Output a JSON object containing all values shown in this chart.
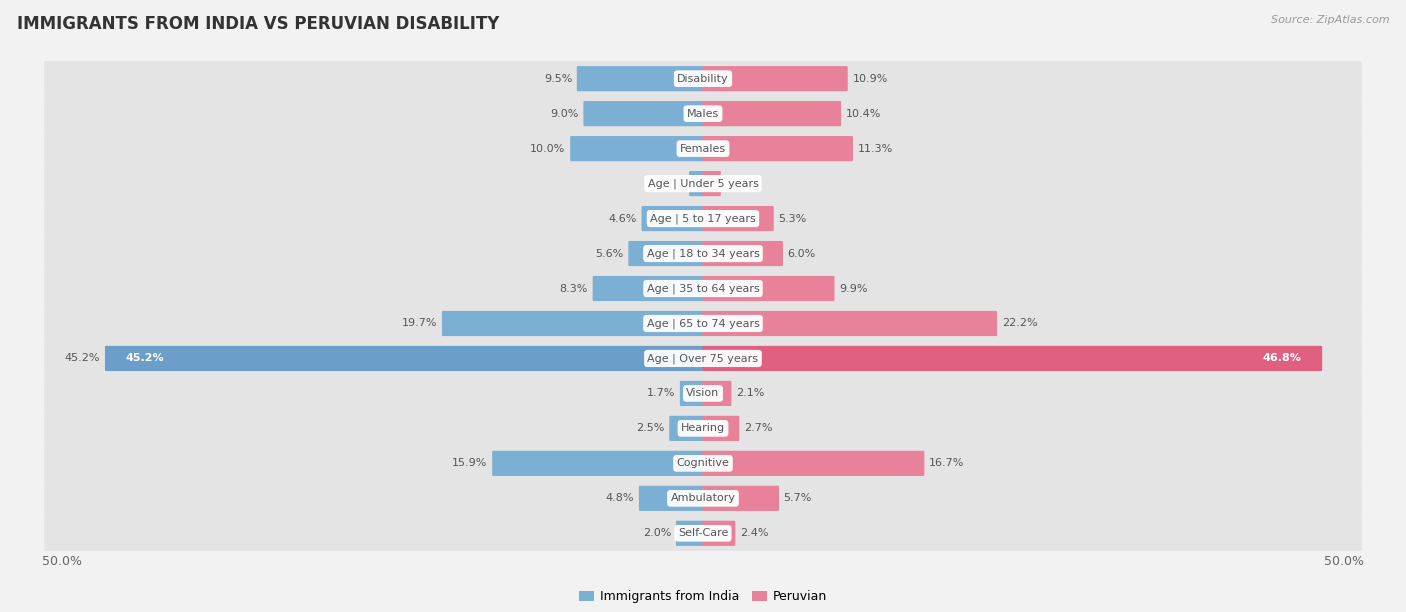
{
  "title": "IMMIGRANTS FROM INDIA VS PERUVIAN DISABILITY",
  "source": "Source: ZipAtlas.com",
  "categories": [
    "Disability",
    "Males",
    "Females",
    "Age | Under 5 years",
    "Age | 5 to 17 years",
    "Age | 18 to 34 years",
    "Age | 35 to 64 years",
    "Age | 65 to 74 years",
    "Age | Over 75 years",
    "Vision",
    "Hearing",
    "Cognitive",
    "Ambulatory",
    "Self-Care"
  ],
  "india_values": [
    9.5,
    9.0,
    10.0,
    1.0,
    4.6,
    5.6,
    8.3,
    19.7,
    45.2,
    1.7,
    2.5,
    15.9,
    4.8,
    2.0
  ],
  "peruvian_values": [
    10.9,
    10.4,
    11.3,
    1.3,
    5.3,
    6.0,
    9.9,
    22.2,
    46.8,
    2.1,
    2.7,
    16.7,
    5.7,
    2.4
  ],
  "india_color": "#7bafd4",
  "peruvian_color": "#e8819a",
  "india_color_large": "#6b9ec8",
  "peruvian_color_large": "#e06080",
  "india_label": "Immigrants from India",
  "peruvian_label": "Peruvian",
  "axis_limit": 50.0,
  "background_color": "#f2f2f2",
  "row_bg_color": "#e4e4e4",
  "label_bg_color": "#ffffff",
  "title_fontsize": 12,
  "source_fontsize": 8,
  "tick_fontsize": 9,
  "cat_fontsize": 8,
  "value_fontsize": 8
}
